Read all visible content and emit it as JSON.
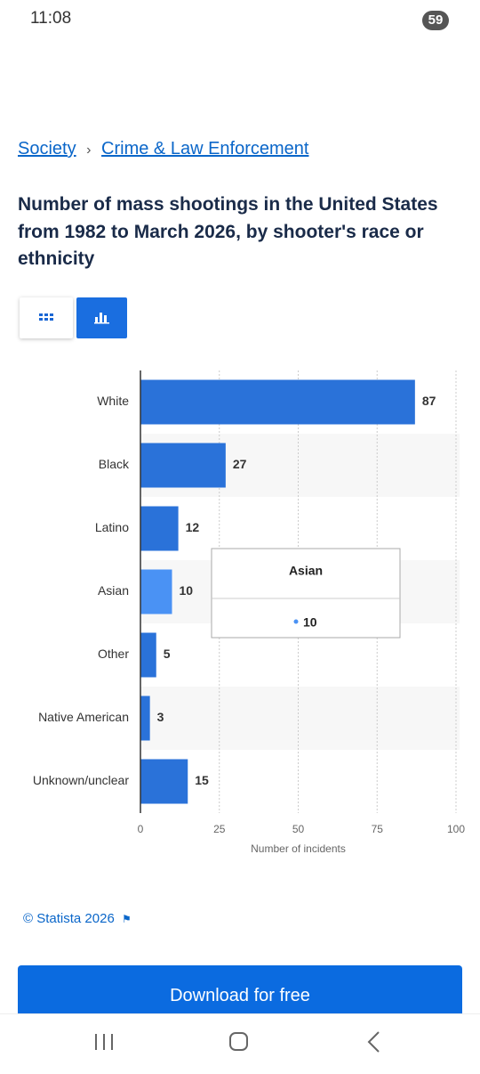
{
  "status_bar": {
    "time": "11:08",
    "battery": "59"
  },
  "breadcrumb": {
    "items": [
      "Society",
      "Crime & Law Enforcement"
    ],
    "separator": "›"
  },
  "title": "Number of mass shootings in the United States from 1982 to March 2026, by shooter's race or ethnicity",
  "chart_data": {
    "type": "bar",
    "orientation": "horizontal",
    "categories": [
      "White",
      "Black",
      "Latino",
      "Asian",
      "Other",
      "Native American",
      "Unknown/unclear"
    ],
    "values": [
      87,
      27,
      12,
      10,
      5,
      3,
      15
    ],
    "color": "#2a72d9",
    "highlight": "Asian",
    "highlight_color": "#4a92f4",
    "xlabel": "Number of incidents",
    "xlim": [
      0,
      100
    ],
    "xticks": [
      0,
      25,
      50,
      75,
      100
    ],
    "grid": true
  },
  "copyright": "© Statista 2026",
  "button": "Download for free"
}
